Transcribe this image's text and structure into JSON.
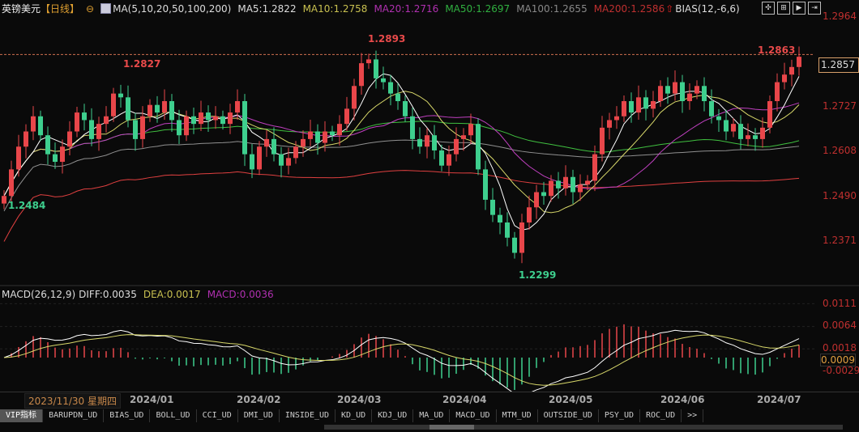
{
  "header": {
    "title": "英镑美元",
    "period": "【日线】",
    "ma_label": "MA(5,10,20,50,100,200)",
    "ma5": "MA5:1.2822",
    "ma10": "MA10:1.2758",
    "ma20": "MA20:1.2716",
    "ma50": "MA50:1.2697",
    "ma100": "MA100:1.2655",
    "ma200": "MA200:1.2586",
    "bias": "BIAS(12,-6,6)"
  },
  "colors": {
    "up": "#e8464a",
    "down": "#3ecf8e",
    "ma5": "#ffffff",
    "ma10": "#d8d86a",
    "ma20": "#c040c0",
    "ma50": "#40c040",
    "ma100": "#909090",
    "ma200": "#e04040"
  },
  "toolbar_icons": [
    "crosshair-icon",
    "zoom-in-icon",
    "zoom-out-icon",
    "pan-right-icon"
  ],
  "price_axis": [
    "1.2964",
    "1.2727",
    "1.2608",
    "1.2490",
    "1.2371"
  ],
  "current_price": "1.2857",
  "annotations": {
    "high1": "1.2827",
    "high2": "1.2893",
    "high3": "1.2863",
    "low1": "1.2484",
    "low2": "1.2299"
  },
  "macd": {
    "label": "MACD(26,12,9)",
    "diff": "DIFF:0.0035",
    "dea": "DEA:0.0017",
    "macd": "MACD:0.0036",
    "axis": [
      "0.0111",
      "0.0064",
      "0.0018",
      "-0.0029"
    ],
    "current": "0.0009"
  },
  "dates": {
    "current": "2023/11/30 星期四",
    "months": [
      "2024/01",
      "2024/02",
      "2024/03",
      "2024/04",
      "2024/05",
      "2024/06",
      "2024/07"
    ]
  },
  "tabs": [
    "VIP指标",
    "BARUPDN_UD",
    "BIAS_UD",
    "BOLL_UD",
    "CCI_UD",
    "DMI_UD",
    "INSIDE_UD",
    "KD_UD",
    "KDJ_UD",
    "MA_UD",
    "MACD_UD",
    "MTM_UD",
    "OUTSIDE_UD",
    "PSY_UD",
    "ROC_UD",
    ">>"
  ],
  "chart_data": {
    "type": "candlestick",
    "ylim": [
      1.2253,
      1.2985
    ],
    "closes": [
      1.249,
      1.256,
      1.262,
      1.266,
      1.27,
      1.265,
      1.26,
      1.258,
      1.262,
      1.266,
      1.271,
      1.269,
      1.264,
      1.268,
      1.27,
      1.276,
      1.275,
      1.269,
      1.264,
      1.27,
      1.273,
      1.271,
      1.274,
      1.269,
      1.265,
      1.27,
      1.268,
      1.271,
      1.269,
      1.27,
      1.268,
      1.271,
      1.274,
      1.26,
      1.256,
      1.262,
      1.264,
      1.26,
      1.257,
      1.259,
      1.262,
      1.264,
      1.266,
      1.263,
      1.266,
      1.265,
      1.268,
      1.272,
      1.278,
      1.284,
      1.285,
      1.28,
      1.279,
      1.276,
      1.274,
      1.27,
      1.264,
      1.262,
      1.265,
      1.261,
      1.257,
      1.26,
      1.264,
      1.265,
      1.268,
      1.256,
      1.248,
      1.244,
      1.242,
      1.238,
      1.234,
      1.242,
      1.246,
      1.25,
      1.249,
      1.253,
      1.251,
      1.254,
      1.25,
      1.252,
      1.253,
      1.26,
      1.267,
      1.269,
      1.27,
      1.274,
      1.271,
      1.275,
      1.272,
      1.274,
      1.278,
      1.276,
      1.279,
      1.274,
      1.276,
      1.278,
      1.274,
      1.27,
      1.269,
      1.266,
      1.268,
      1.264,
      1.265,
      1.264,
      1.267,
      1.274,
      1.279,
      1.281,
      1.283,
      1.2857
    ]
  }
}
